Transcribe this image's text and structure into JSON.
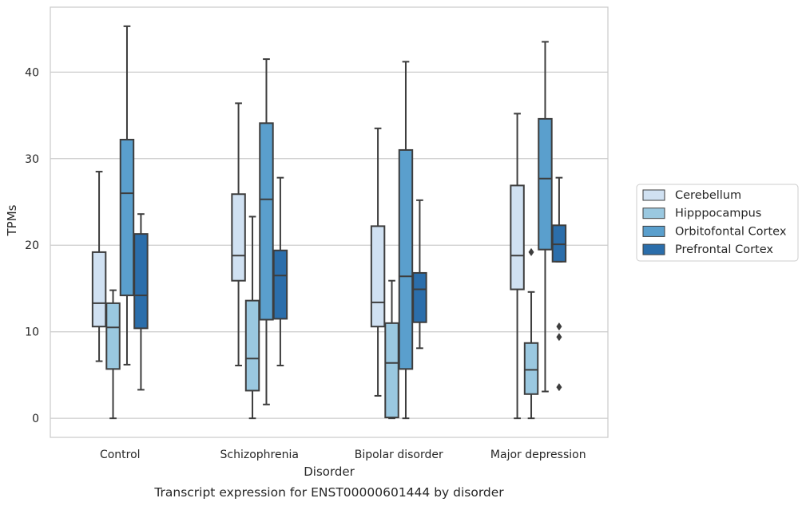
{
  "chart_data": {
    "type": "box",
    "caption": "Transcript expression for ENST00000601444 by disorder",
    "xlabel": "Disorder",
    "ylabel": "TPMs",
    "ylim": [
      -2.2,
      47.5
    ],
    "yticks": [
      0,
      10,
      20,
      30,
      40
    ],
    "grid": "horizontal",
    "legend_position": "outside-right",
    "categories": [
      "Control",
      "Schizophrenia",
      "Bipolar disorder",
      "Major depression"
    ],
    "series": [
      {
        "name": "Cerebellum",
        "color": "#d0e1f2",
        "boxes": [
          {
            "whislo": 6.6,
            "q1": 10.6,
            "med": 13.3,
            "q3": 19.2,
            "whishi": 28.5,
            "fliers": []
          },
          {
            "whislo": 6.1,
            "q1": 15.9,
            "med": 18.8,
            "q3": 25.9,
            "whishi": 36.4,
            "fliers": []
          },
          {
            "whislo": 2.6,
            "q1": 10.6,
            "med": 13.4,
            "q3": 22.2,
            "whishi": 33.5,
            "fliers": []
          },
          {
            "whislo": 0.0,
            "q1": 14.9,
            "med": 18.8,
            "q3": 26.9,
            "whishi": 35.2,
            "fliers": []
          }
        ]
      },
      {
        "name": "Hipppocampus",
        "color": "#9ac8e0",
        "boxes": [
          {
            "whislo": 0.0,
            "q1": 5.7,
            "med": 10.5,
            "q3": 13.3,
            "whishi": 14.8,
            "fliers": []
          },
          {
            "whislo": 0.0,
            "q1": 3.2,
            "med": 6.9,
            "q3": 13.6,
            "whishi": 23.3,
            "fliers": []
          },
          {
            "whislo": 0.0,
            "q1": 0.1,
            "med": 6.4,
            "q3": 11.0,
            "whishi": 15.9,
            "fliers": []
          },
          {
            "whislo": 0.0,
            "q1": 2.8,
            "med": 5.6,
            "q3": 8.7,
            "whishi": 14.6,
            "fliers": [
              19.2
            ]
          }
        ]
      },
      {
        "name": "Orbitofontal Cortex",
        "color": "#5a9fcd",
        "boxes": [
          {
            "whislo": 6.2,
            "q1": 14.2,
            "med": 26.0,
            "q3": 32.2,
            "whishi": 45.3,
            "fliers": []
          },
          {
            "whislo": 1.6,
            "q1": 11.4,
            "med": 25.3,
            "q3": 34.1,
            "whishi": 41.5,
            "fliers": []
          },
          {
            "whislo": 0.0,
            "q1": 5.7,
            "med": 16.4,
            "q3": 31.0,
            "whishi": 41.2,
            "fliers": []
          },
          {
            "whislo": 3.1,
            "q1": 19.5,
            "med": 27.7,
            "q3": 34.6,
            "whishi": 43.5,
            "fliers": []
          }
        ]
      },
      {
        "name": "Prefrontal Cortex",
        "color": "#2b6eab",
        "boxes": [
          {
            "whislo": 3.3,
            "q1": 10.4,
            "med": 14.2,
            "q3": 21.3,
            "whishi": 23.6,
            "fliers": []
          },
          {
            "whislo": 6.1,
            "q1": 11.5,
            "med": 16.5,
            "q3": 19.4,
            "whishi": 27.8,
            "fliers": []
          },
          {
            "whislo": 8.1,
            "q1": 11.1,
            "med": 14.9,
            "q3": 16.8,
            "whishi": 25.2,
            "fliers": []
          },
          {
            "whislo": 18.1,
            "q1": 18.1,
            "med": 20.1,
            "q3": 22.3,
            "whishi": 27.8,
            "fliers": [
              10.6,
              9.4,
              3.6
            ]
          }
        ]
      }
    ]
  }
}
